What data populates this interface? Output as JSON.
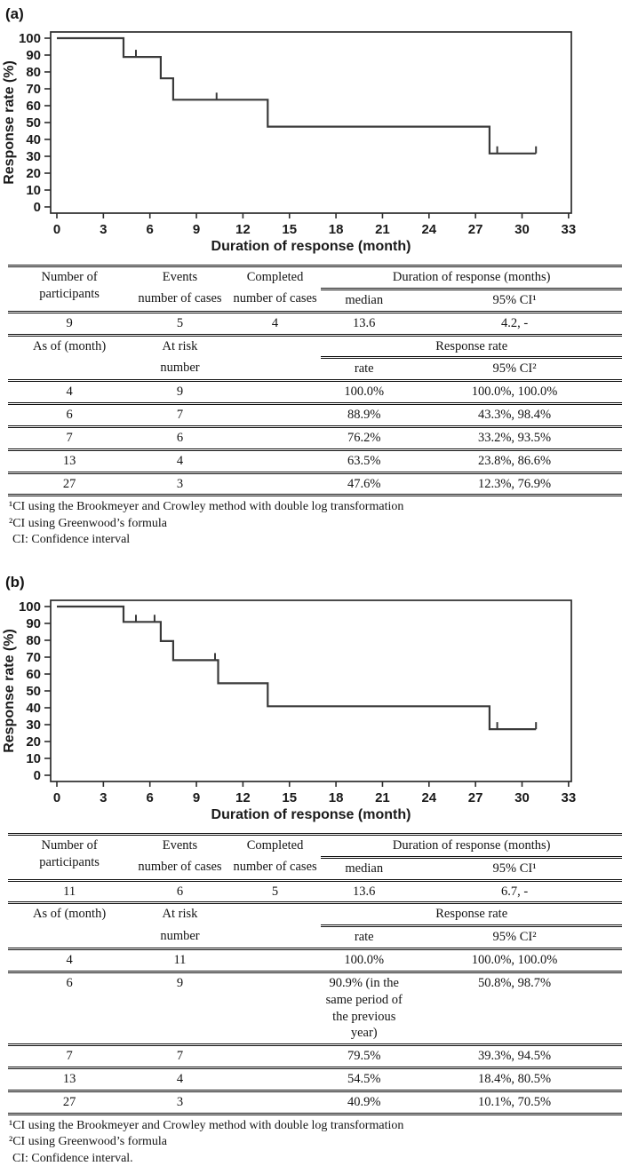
{
  "panels": [
    {
      "label": "(a)",
      "table": {
        "h_participants": "Number of participants",
        "h_events": "Events",
        "h_completed": "Completed",
        "h_duration": "Duration of response (months)",
        "h_cases_events": "number of cases",
        "h_cases_completed": "number of cases",
        "h_median": "median",
        "h_ci1": "95% CI¹",
        "summary": {
          "participants": "9",
          "events": "5",
          "completed": "4",
          "median": "13.6",
          "ci": "4.2, -"
        },
        "h_asof": "As of (month)",
        "h_atrisk": "At risk",
        "h_number": "number",
        "h_response": "Response rate",
        "h_rate": "rate",
        "h_ci2": "95% CI²",
        "rate_rows": [
          {
            "month": "4",
            "at_risk": "9",
            "rate": "100.0%",
            "ci": "100.0%, 100.0%"
          },
          {
            "month": "6",
            "at_risk": "7",
            "rate": "88.9%",
            "ci": "43.3%, 98.4%"
          },
          {
            "month": "7",
            "at_risk": "6",
            "rate": "76.2%",
            "ci": "33.2%, 93.5%"
          },
          {
            "month": "13",
            "at_risk": "4",
            "rate": "63.5%",
            "ci": "23.8%, 86.6%"
          },
          {
            "month": "27",
            "at_risk": "3",
            "rate": "47.6%",
            "ci": "12.3%, 76.9%"
          }
        ]
      },
      "footnotes": [
        "¹CI using the Brookmeyer and Crowley method with double log transformation",
        "²CI using Greenwood’s formula",
        "CI: Confidence interval"
      ]
    },
    {
      "label": "(b)",
      "table": {
        "h_participants": "Number of participants",
        "h_events": "Events",
        "h_completed": "Completed",
        "h_duration": "Duration of response (months)",
        "h_cases_events": "number of cases",
        "h_cases_completed": "number of cases",
        "h_median": "median",
        "h_ci1": "95% CI¹",
        "summary": {
          "participants": "11",
          "events": "6",
          "completed": "5",
          "median": "13.6",
          "ci": "6.7, -"
        },
        "h_asof": "As of (month)",
        "h_atrisk": "At risk",
        "h_number": "number",
        "h_response": "Response rate",
        "h_rate": "rate",
        "h_ci2": "95% CI²",
        "rate_rows": [
          {
            "month": "4",
            "at_risk": "11",
            "rate": "100.0%",
            "ci": "100.0%, 100.0%"
          },
          {
            "month": "6",
            "at_risk": "9",
            "rate": "90.9% (in the same period of the previous year)",
            "ci": "50.8%, 98.7%"
          },
          {
            "month": "7",
            "at_risk": "7",
            "rate": "79.5%",
            "ci": "39.3%, 94.5%"
          },
          {
            "month": "13",
            "at_risk": "4",
            "rate": "54.5%",
            "ci": "18.4%, 80.5%"
          },
          {
            "month": "27",
            "at_risk": "3",
            "rate": "40.9%",
            "ci": "10.1%, 70.5%"
          }
        ]
      },
      "footnotes": [
        "¹CI using the Brookmeyer and Crowley method with double log transformation",
        "²CI using Greenwood’s formula",
        "CI: Confidence interval."
      ]
    }
  ],
  "chart_data": [
    {
      "type": "line",
      "subtype": "kaplan-meier-step",
      "title": "",
      "xlabel": "Duration of response (month)",
      "ylabel": "Response rate (%)",
      "xlim": [
        0,
        33.5
      ],
      "ylim": [
        0,
        100
      ],
      "xticks": [
        0,
        3,
        6,
        9,
        12,
        15,
        18,
        21,
        24,
        27,
        30,
        33
      ],
      "yticks": [
        0,
        10,
        20,
        30,
        40,
        50,
        60,
        70,
        80,
        90,
        100
      ],
      "grid": false,
      "legend": "none",
      "line_color": "#3a3a3a",
      "series": [
        {
          "name": "duration-of-response-a",
          "start": [
            0,
            100
          ],
          "steps": [
            [
              4.3,
              88.9
            ],
            [
              6.7,
              76.2
            ],
            [
              7.5,
              63.5
            ],
            [
              13.6,
              47.6
            ],
            [
              27.9,
              31.7
            ]
          ],
          "end_x": 30.9,
          "censor_marks": [
            [
              5.1,
              88.9
            ],
            [
              10.3,
              63.5
            ],
            [
              28.4,
              31.7
            ],
            [
              30.9,
              31.7
            ]
          ]
        }
      ]
    },
    {
      "type": "line",
      "subtype": "kaplan-meier-step",
      "title": "",
      "xlabel": "Duration of response (month)",
      "ylabel": "Response rate (%)",
      "xlim": [
        0,
        33.5
      ],
      "ylim": [
        0,
        100
      ],
      "xticks": [
        0,
        3,
        6,
        9,
        12,
        15,
        18,
        21,
        24,
        27,
        30,
        33
      ],
      "yticks": [
        0,
        10,
        20,
        30,
        40,
        50,
        60,
        70,
        80,
        90,
        100
      ],
      "grid": false,
      "legend": "none",
      "line_color": "#3a3a3a",
      "series": [
        {
          "name": "duration-of-response-b",
          "start": [
            0,
            100
          ],
          "steps": [
            [
              4.3,
              90.9
            ],
            [
              6.7,
              79.5
            ],
            [
              7.5,
              68.2
            ],
            [
              10.4,
              54.5
            ],
            [
              13.6,
              40.9
            ],
            [
              27.9,
              27.3
            ]
          ],
          "end_x": 30.9,
          "censor_marks": [
            [
              5.1,
              90.9
            ],
            [
              6.3,
              90.9
            ],
            [
              10.2,
              68.2
            ],
            [
              28.4,
              27.3
            ],
            [
              30.9,
              27.3
            ]
          ]
        }
      ]
    }
  ]
}
